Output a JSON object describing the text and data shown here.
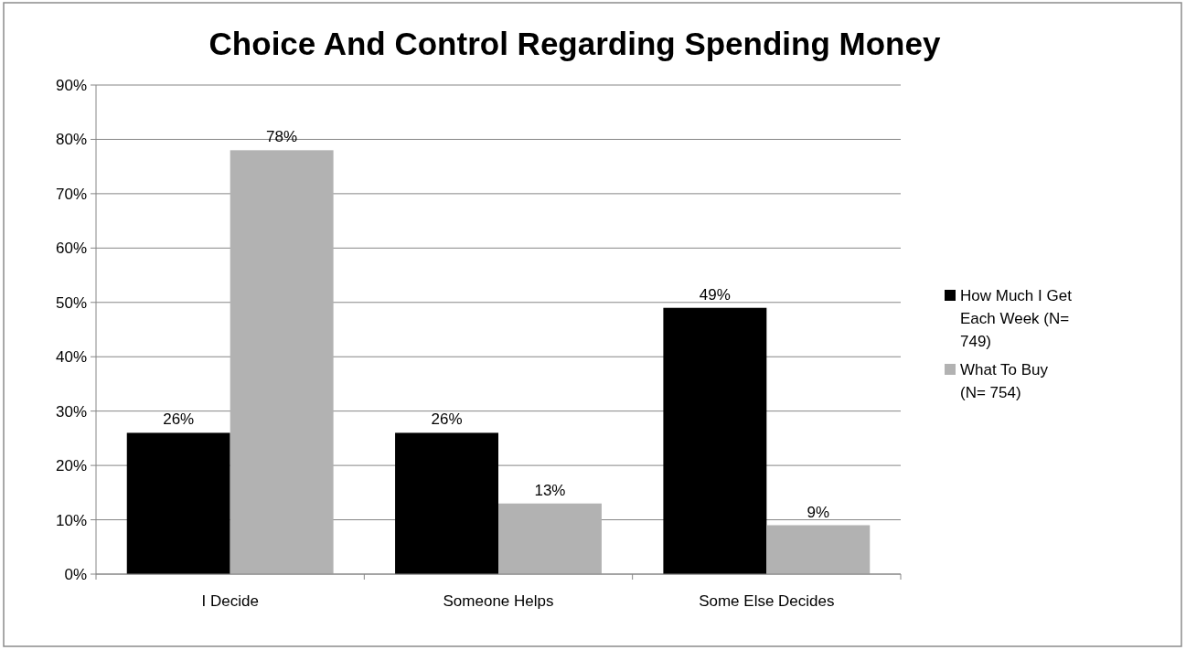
{
  "chart_data": {
    "type": "bar",
    "title": "Choice And Control Regarding Spending Money",
    "categories": [
      "I Decide",
      "Someone Helps",
      "Some Else Decides"
    ],
    "series": [
      {
        "name": "How Much I Get Each Week (N= 749)",
        "color": "#000000",
        "values": [
          26,
          26,
          49
        ],
        "value_labels": [
          "26%",
          "26%",
          "49%"
        ]
      },
      {
        "name": "What To Buy (N= 754)",
        "color": "#b2b2b2",
        "values": [
          78,
          13,
          9
        ],
        "value_labels": [
          "78%",
          "13%",
          "9%"
        ]
      }
    ],
    "ylim": [
      0,
      90
    ],
    "yticks": [
      {
        "value": 0,
        "label": "0%"
      },
      {
        "value": 10,
        "label": "10%"
      },
      {
        "value": 20,
        "label": "20%"
      },
      {
        "value": 30,
        "label": "30%"
      },
      {
        "value": 40,
        "label": "40%"
      },
      {
        "value": 50,
        "label": "50%"
      },
      {
        "value": 60,
        "label": "60%"
      },
      {
        "value": 70,
        "label": "70%"
      },
      {
        "value": 80,
        "label": "80%"
      },
      {
        "value": 90,
        "label": "90%"
      }
    ],
    "grid": "y",
    "legend": "right"
  }
}
